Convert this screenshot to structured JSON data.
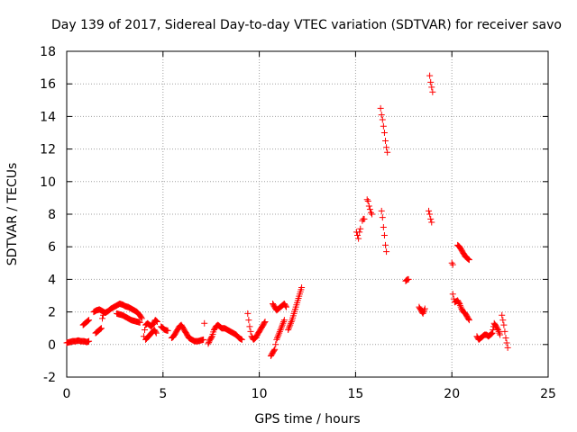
{
  "chart_data": {
    "type": "scatter",
    "title": "Day 139 of 2017, Sidereal Day-to-day VTEC variation (SDTVAR) for receiver savo",
    "xlabel": "GPS time / hours",
    "ylabel": "SDTVAR / TECUs",
    "xlim": [
      0,
      25
    ],
    "ylim": [
      -2,
      18
    ],
    "xticks": [
      0,
      5,
      10,
      15,
      20,
      25
    ],
    "yticks": [
      -2,
      0,
      2,
      4,
      6,
      8,
      10,
      12,
      14,
      16,
      18
    ],
    "grid": true,
    "marker": "plus",
    "color": "#ff0000",
    "segments": [
      [
        [
          0.0,
          0.1
        ],
        [
          0.15,
          0.15
        ],
        [
          0.3,
          0.2
        ],
        [
          0.45,
          0.2
        ],
        [
          0.6,
          0.25
        ],
        [
          0.75,
          0.2
        ],
        [
          0.9,
          0.2
        ],
        [
          1.05,
          0.15
        ],
        [
          1.15,
          0.2
        ]
      ],
      [
        [
          0.85,
          1.2
        ],
        [
          0.95,
          1.3
        ],
        [
          1.05,
          1.4
        ],
        [
          1.15,
          1.5
        ]
      ],
      [
        [
          1.5,
          0.7
        ],
        [
          1.6,
          0.8
        ],
        [
          1.7,
          0.9
        ],
        [
          1.8,
          1.0
        ],
        [
          1.85,
          1.6
        ],
        [
          1.9,
          1.8
        ]
      ],
      [
        [
          1.4,
          2.0
        ],
        [
          1.55,
          2.1
        ],
        [
          1.7,
          2.15
        ],
        [
          1.85,
          2.05
        ],
        [
          2.0,
          1.95
        ],
        [
          2.15,
          2.05
        ],
        [
          2.3,
          2.2
        ],
        [
          2.45,
          2.3
        ],
        [
          2.6,
          2.4
        ],
        [
          2.75,
          2.5
        ],
        [
          2.9,
          2.45
        ],
        [
          3.05,
          2.35
        ],
        [
          3.2,
          2.3
        ],
        [
          3.35,
          2.2
        ],
        [
          3.5,
          2.1
        ],
        [
          3.65,
          2.0
        ],
        [
          3.8,
          1.8
        ],
        [
          3.9,
          1.6
        ]
      ],
      [
        [
          2.6,
          1.9
        ],
        [
          2.75,
          1.85
        ],
        [
          2.9,
          1.8
        ],
        [
          3.05,
          1.7
        ],
        [
          3.2,
          1.6
        ],
        [
          3.35,
          1.5
        ],
        [
          3.5,
          1.45
        ],
        [
          3.65,
          1.4
        ],
        [
          3.8,
          1.35
        ]
      ],
      [
        [
          4.0,
          0.5
        ],
        [
          4.05,
          0.9
        ],
        [
          4.1,
          1.2
        ],
        [
          4.2,
          1.3
        ],
        [
          4.3,
          1.2
        ],
        [
          4.4,
          1.1
        ],
        [
          4.5,
          1.3
        ],
        [
          4.6,
          1.5
        ],
        [
          4.7,
          1.4
        ]
      ],
      [
        [
          4.1,
          0.3
        ],
        [
          4.25,
          0.5
        ],
        [
          4.4,
          0.7
        ],
        [
          4.55,
          0.9
        ],
        [
          4.65,
          0.7
        ]
      ],
      [
        [
          4.9,
          1.1
        ],
        [
          5.0,
          1.0
        ],
        [
          5.1,
          0.9
        ],
        [
          5.25,
          0.85
        ]
      ],
      [
        [
          5.45,
          0.4
        ],
        [
          5.55,
          0.5
        ],
        [
          5.65,
          0.7
        ],
        [
          5.75,
          0.9
        ],
        [
          5.85,
          1.1
        ],
        [
          5.95,
          1.2
        ],
        [
          6.05,
          1.0
        ],
        [
          6.15,
          0.8
        ],
        [
          6.25,
          0.6
        ],
        [
          6.35,
          0.4
        ],
        [
          6.5,
          0.3
        ],
        [
          6.65,
          0.2
        ],
        [
          6.8,
          0.2
        ],
        [
          6.95,
          0.25
        ],
        [
          7.1,
          0.3
        ]
      ],
      [
        [
          7.15,
          1.3
        ]
      ],
      [
        [
          7.35,
          0.05
        ],
        [
          7.45,
          0.3
        ],
        [
          7.55,
          0.5
        ],
        [
          7.65,
          0.9
        ],
        [
          7.75,
          1.1
        ],
        [
          7.85,
          1.2
        ],
        [
          7.95,
          1.1
        ],
        [
          8.05,
          1.0
        ],
        [
          8.2,
          1.0
        ],
        [
          8.35,
          0.9
        ],
        [
          8.5,
          0.8
        ],
        [
          8.65,
          0.7
        ],
        [
          8.8,
          0.6
        ],
        [
          8.95,
          0.4
        ],
        [
          9.1,
          0.3
        ]
      ],
      [
        [
          9.4,
          1.9
        ],
        [
          9.45,
          1.5
        ],
        [
          9.5,
          1.1
        ],
        [
          9.55,
          0.8
        ],
        [
          9.6,
          0.5
        ],
        [
          9.7,
          0.3
        ],
        [
          9.8,
          0.4
        ],
        [
          9.9,
          0.6
        ],
        [
          10.0,
          0.8
        ],
        [
          10.1,
          1.0
        ],
        [
          10.2,
          1.2
        ],
        [
          10.3,
          1.4
        ]
      ],
      [
        [
          10.6,
          -0.7
        ],
        [
          10.7,
          -0.5
        ],
        [
          10.8,
          -0.3
        ],
        [
          10.85,
          0.0
        ],
        [
          10.9,
          0.3
        ],
        [
          11.0,
          0.6
        ],
        [
          11.1,
          0.9
        ],
        [
          11.2,
          1.2
        ],
        [
          11.3,
          1.5
        ]
      ],
      [
        [
          10.7,
          2.5
        ],
        [
          10.8,
          2.3
        ],
        [
          10.9,
          2.1
        ],
        [
          11.0,
          2.2
        ],
        [
          11.1,
          2.3
        ],
        [
          11.2,
          2.4
        ],
        [
          11.3,
          2.5
        ],
        [
          11.4,
          2.3
        ]
      ],
      [
        [
          11.5,
          0.9
        ],
        [
          11.6,
          1.2
        ],
        [
          11.7,
          1.5
        ],
        [
          11.8,
          1.9
        ],
        [
          11.9,
          2.3
        ],
        [
          12.0,
          2.7
        ],
        [
          12.1,
          3.1
        ],
        [
          12.2,
          3.5
        ]
      ],
      [
        [
          15.05,
          6.9
        ],
        [
          15.1,
          6.7
        ],
        [
          15.15,
          6.5
        ],
        [
          15.2,
          6.9
        ],
        [
          15.25,
          7.1
        ]
      ],
      [
        [
          15.35,
          7.6
        ],
        [
          15.4,
          7.7
        ],
        [
          15.45,
          7.7
        ]
      ],
      [
        [
          15.6,
          8.9
        ],
        [
          15.65,
          8.8
        ],
        [
          15.7,
          8.5
        ],
        [
          15.75,
          8.3
        ],
        [
          15.8,
          8.1
        ],
        [
          15.85,
          8.0
        ]
      ],
      [
        [
          16.3,
          14.5
        ],
        [
          16.35,
          14.1
        ],
        [
          16.4,
          13.8
        ],
        [
          16.45,
          13.4
        ],
        [
          16.5,
          13.0
        ],
        [
          16.55,
          12.5
        ],
        [
          16.6,
          12.1
        ],
        [
          16.65,
          11.8
        ]
      ],
      [
        [
          16.35,
          8.2
        ],
        [
          16.4,
          7.8
        ],
        [
          16.45,
          7.2
        ],
        [
          16.5,
          6.7
        ],
        [
          16.55,
          6.1
        ],
        [
          16.6,
          5.7
        ]
      ],
      [
        [
          17.6,
          3.9
        ],
        [
          17.7,
          4.0
        ],
        [
          17.75,
          4.0
        ]
      ],
      [
        [
          18.3,
          2.3
        ],
        [
          18.4,
          2.1
        ],
        [
          18.5,
          1.9
        ],
        [
          18.6,
          2.2
        ]
      ],
      [
        [
          18.8,
          8.2
        ],
        [
          18.85,
          8.0
        ],
        [
          18.9,
          7.7
        ],
        [
          18.95,
          7.5
        ]
      ],
      [
        [
          18.85,
          16.5
        ],
        [
          18.9,
          16.1
        ],
        [
          18.95,
          15.8
        ],
        [
          19.0,
          15.5
        ]
      ],
      [
        [
          20.0,
          5.0
        ],
        [
          20.05,
          4.9
        ]
      ],
      [
        [
          20.3,
          6.1
        ],
        [
          20.4,
          6.0
        ],
        [
          20.5,
          5.8
        ],
        [
          20.6,
          5.6
        ],
        [
          20.7,
          5.4
        ],
        [
          20.8,
          5.3
        ],
        [
          20.9,
          5.2
        ]
      ],
      [
        [
          20.05,
          3.1
        ],
        [
          20.1,
          2.8
        ],
        [
          20.15,
          2.6
        ],
        [
          20.3,
          2.7
        ],
        [
          20.4,
          2.5
        ],
        [
          20.5,
          2.2
        ],
        [
          20.6,
          2.0
        ],
        [
          20.7,
          1.9
        ],
        [
          20.8,
          1.7
        ],
        [
          20.9,
          1.5
        ]
      ],
      [
        [
          21.3,
          0.5
        ],
        [
          21.4,
          0.3
        ],
        [
          21.5,
          0.4
        ],
        [
          21.6,
          0.5
        ],
        [
          21.7,
          0.6
        ],
        [
          21.8,
          0.6
        ],
        [
          21.9,
          0.5
        ],
        [
          22.0,
          0.6
        ],
        [
          22.1,
          0.7
        ],
        [
          22.2,
          1.3
        ],
        [
          22.3,
          1.1
        ],
        [
          22.4,
          0.9
        ],
        [
          22.5,
          0.6
        ]
      ],
      [
        [
          22.6,
          1.8
        ],
        [
          22.65,
          1.5
        ],
        [
          22.7,
          1.2
        ],
        [
          22.75,
          0.8
        ],
        [
          22.8,
          0.4
        ],
        [
          22.85,
          0.1
        ],
        [
          22.9,
          -0.2
        ]
      ]
    ]
  }
}
